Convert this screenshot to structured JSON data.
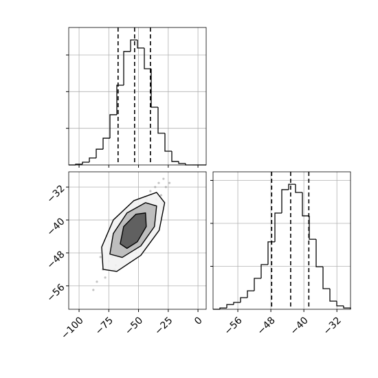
{
  "chart_data": [
    {
      "type": "histogram",
      "bins": [
        -108.7,
        -102.92,
        -97.14,
        -91.36,
        -85.58,
        -79.8,
        -74.02,
        -68.24,
        -62.46,
        -56.68,
        -50.9,
        -45.12,
        -39.34,
        -33.56,
        -27.78,
        -22.0,
        -16.22,
        -10.44,
        -4.66,
        1.12,
        6.9
      ],
      "values": [
        0,
        4,
        15,
        38,
        86,
        146,
        274,
        435,
        619,
        682,
        638,
        525,
        315,
        173,
        75,
        19,
        8,
        0,
        0,
        0
      ],
      "quantiles": [
        -67.2,
        -53.3,
        -40.0
      ],
      "xlim": [
        -108.7,
        6.9
      ],
      "xticks": [
        -100,
        -75,
        -50,
        -25,
        0
      ],
      "ylim": [
        0,
        750
      ],
      "yticks": [
        200,
        400,
        600
      ],
      "grid": true,
      "color": "#000000"
    },
    {
      "type": "scatter",
      "x": [
        -85,
        -80,
        -78,
        -75,
        -72,
        -70,
        -68,
        -66,
        -64,
        -62,
        -60,
        -58,
        -56,
        -55,
        -53,
        -51,
        -50,
        -48,
        -46,
        -45,
        -43,
        -41,
        -40,
        -38,
        -36,
        -35,
        -33,
        -31,
        -29,
        -27,
        -88,
        -82,
        -74,
        -69,
        -60,
        -52,
        -44,
        -37,
        -30,
        -24
      ],
      "values": [
        -55,
        -52,
        -54,
        -50,
        -49,
        -52,
        -46,
        -48,
        -44,
        -47,
        -42,
        -46,
        -40,
        -45,
        -39,
        -43,
        -37,
        -41,
        -36,
        -40,
        -35,
        -38,
        -33,
        -37,
        -32,
        -35,
        -31,
        -34,
        -30,
        -32,
        -57,
        -49,
        -44,
        -51,
        -38,
        -48,
        -44,
        -41,
        -36,
        -31
      ],
      "contours": [
        {
          "x": [
            -79.8,
            -81.0,
            -71.2,
            -53.9,
            -34.8,
            -28.0,
            -32.6,
            -48.1,
            -68.3
          ],
          "y": [
            -52.0,
            -46.6,
            -40.0,
            -35.3,
            -33.3,
            -35.8,
            -42.5,
            -48.6,
            -52.5
          ]
        },
        {
          "x": [
            -74.1,
            -71.2,
            -59.7,
            -44.1,
            -34.8,
            -36.6,
            -48.1,
            -63.7
          ],
          "y": [
            -48.3,
            -43.3,
            -38.3,
            -35.8,
            -36.6,
            -41.6,
            -46.3,
            -49.1
          ]
        },
        {
          "x": [
            -65.4,
            -62.5,
            -52.2,
            -44.1,
            -43.5,
            -51.0,
            -59.7
          ],
          "y": [
            -45.8,
            -41.6,
            -38.6,
            -38.3,
            -41.6,
            -45.3,
            -46.9
          ]
        }
      ],
      "xlim": [
        -108.7,
        6.9
      ],
      "xticks": [
        {
          "value": -100,
          "label": "−100"
        },
        {
          "value": -75,
          "label": "−75"
        },
        {
          "value": -50,
          "label": "−50"
        },
        {
          "value": -25,
          "label": "−25"
        },
        0
      ],
      "ylim": [
        -61.7,
        -28.3
      ],
      "yticks": [
        {
          "value": -32,
          "label": "−32"
        },
        {
          "value": -40,
          "label": "−40"
        },
        {
          "value": -48,
          "label": "−48"
        },
        {
          "value": -56,
          "label": "−56"
        }
      ],
      "grid": true,
      "color": "#888888"
    },
    {
      "type": "histogram",
      "bins": [
        -62,
        -60.335,
        -58.67,
        -57.005,
        -55.34,
        -53.675,
        -52.01,
        -50.345,
        -48.68,
        -47.015,
        -45.35,
        -43.685,
        -42.02,
        -40.355,
        -38.69,
        -37.025,
        -35.36,
        -33.695,
        -32.03,
        -30.365,
        -28.7
      ],
      "values": [
        0,
        6,
        22,
        32,
        54,
        86,
        144,
        208,
        314,
        448,
        557,
        582,
        544,
        435,
        326,
        198,
        96,
        38,
        16,
        6
      ],
      "quantiles": [
        -47.8,
        -43.2,
        -38.8
      ],
      "xlim": [
        -62,
        -28.7
      ],
      "xticks": [
        {
          "value": -56,
          "label": "−56"
        },
        {
          "value": -48,
          "label": "−48"
        },
        {
          "value": -40,
          "label": "−40"
        },
        {
          "value": -32,
          "label": "−32"
        }
      ],
      "ylim": [
        0,
        640
      ],
      "yticks": [
        200,
        400,
        600
      ],
      "grid": true,
      "color": "#000000"
    }
  ]
}
